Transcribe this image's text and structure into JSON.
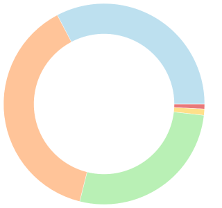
{
  "chart_data": {
    "type": "doughnut",
    "values": [
      0.8,
      1.0,
      27.1,
      38.4,
      32.7
    ],
    "colors": [
      "#e8797a",
      "#ffe08a",
      "#b9f0b5",
      "#ffc499",
      "#bde0ef"
    ]
  }
}
